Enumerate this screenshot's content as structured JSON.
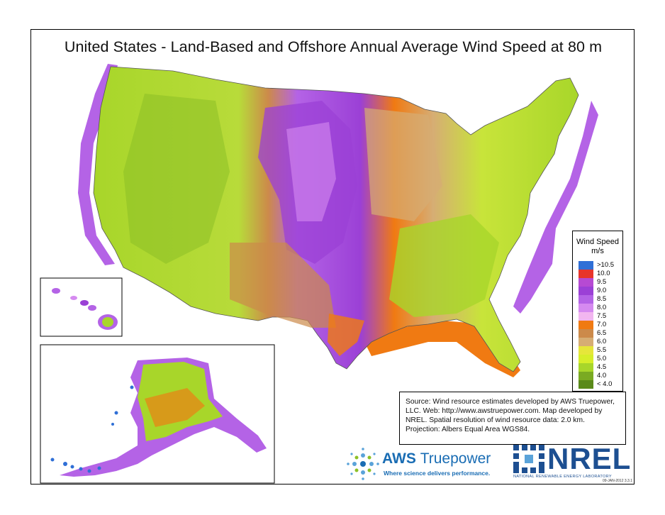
{
  "title": "United States - Land-Based and Offshore Annual Average Wind Speed at 80 m",
  "legend": {
    "title": "Wind Speed",
    "unit": "m/s",
    "items": [
      {
        "label": ">10.5",
        "color": "#2f6fd6"
      },
      {
        "label": "10.0",
        "color": "#e7352b"
      },
      {
        "label": "9.5",
        "color": "#b64ad3"
      },
      {
        "label": "9.0",
        "color": "#9b40d6"
      },
      {
        "label": "8.5",
        "color": "#b463e6"
      },
      {
        "label": "8.0",
        "color": "#d58af0"
      },
      {
        "label": "7.5",
        "color": "#f2b6f0"
      },
      {
        "label": "7.0",
        "color": "#f07a12"
      },
      {
        "label": "6.5",
        "color": "#cc8a4a"
      },
      {
        "label": "6.0",
        "color": "#d6ad74"
      },
      {
        "label": "5.5",
        "color": "#e6e63a"
      },
      {
        "label": "5.0",
        "color": "#d7ee2a"
      },
      {
        "label": "4.5",
        "color": "#a8d62a"
      },
      {
        "label": "4.0",
        "color": "#7aaa22"
      },
      {
        "label": "< 4.0",
        "color": "#5a8a1a"
      }
    ]
  },
  "source_text": "Source: Wind resource estimates developed by AWS Truepower, LLC. Web: http://www.awstruepower.com. Map developed by NREL. Spatial resolution of wind resource data: 2.0 km. Projection: Albers Equal Area WGS84.",
  "aws_logo": {
    "name_bold": "AWS",
    "name_light": "Truepower",
    "tagline": "Where science delivers performance."
  },
  "nrel_logo": {
    "word": "NREL",
    "subtitle": "NATIONAL RENEWABLE ENERGY LABORATORY"
  },
  "date_code": "09-JAN-2012 3.3.1"
}
